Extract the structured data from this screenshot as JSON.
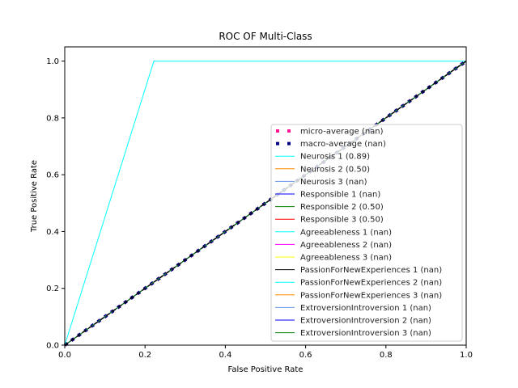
{
  "chart_data": {
    "type": "line",
    "title": "ROC OF Multi-Class",
    "xlabel": "False Positive Rate",
    "ylabel": "True Positive Rate",
    "xlim": [
      0,
      1
    ],
    "ylim": [
      0,
      1.05
    ],
    "x_ticks": [
      "0.0",
      "0.2",
      "0.4",
      "0.6",
      "0.8",
      "1.0"
    ],
    "y_ticks": [
      "0.0",
      "0.2",
      "0.4",
      "0.6",
      "0.8",
      "1.0"
    ],
    "grid": false,
    "legend_position": "lower-right",
    "series": [
      {
        "name": "micro-average (nan)",
        "color": "#ff1493",
        "style": "dotted-thick",
        "x": [
          0,
          1
        ],
        "y": [
          0,
          1
        ]
      },
      {
        "name": "macro-average (nan)",
        "color": "#000080",
        "style": "dotted-thick",
        "x": [
          0,
          1
        ],
        "y": [
          0,
          1
        ]
      },
      {
        "name": "Neurosis 1 (0.89)",
        "color": "#00ffff",
        "style": "solid",
        "x": [
          0,
          0.222,
          1
        ],
        "y": [
          0,
          1,
          1
        ]
      },
      {
        "name": "Neurosis 2 (0.50)",
        "color": "#ff8c00",
        "style": "solid",
        "x": [
          0,
          1
        ],
        "y": [
          0,
          1
        ]
      },
      {
        "name": "Neurosis 3 (nan)",
        "color": "#6495ed",
        "style": "solid",
        "x": [
          0,
          1
        ],
        "y": [
          0,
          1
        ]
      },
      {
        "name": "Responsible 1 (nan)",
        "color": "#0000ff",
        "style": "solid",
        "x": [
          0,
          1
        ],
        "y": [
          0,
          1
        ]
      },
      {
        "name": "Responsible 2 (0.50)",
        "color": "#008000",
        "style": "solid",
        "x": [
          0,
          1
        ],
        "y": [
          0,
          1
        ]
      },
      {
        "name": "Responsible 3 (0.50)",
        "color": "#ff0000",
        "style": "solid",
        "x": [
          0,
          1
        ],
        "y": [
          0,
          1
        ]
      },
      {
        "name": "Agreeableness 1 (nan)",
        "color": "#00ffff",
        "style": "solid",
        "x": [
          0,
          1
        ],
        "y": [
          0,
          1
        ]
      },
      {
        "name": "Agreeableness 2 (nan)",
        "color": "#ff00ff",
        "style": "solid",
        "x": [
          0,
          1
        ],
        "y": [
          0,
          1
        ]
      },
      {
        "name": "Agreeableness 3 (nan)",
        "color": "#ffff00",
        "style": "solid",
        "x": [
          0,
          1
        ],
        "y": [
          0,
          1
        ]
      },
      {
        "name": "PassionForNewExperiences 1 (nan)",
        "color": "#000000",
        "style": "solid",
        "x": [
          0,
          1
        ],
        "y": [
          0,
          1
        ]
      },
      {
        "name": "PassionForNewExperiences 2 (nan)",
        "color": "#00ffff",
        "style": "solid",
        "x": [
          0,
          1
        ],
        "y": [
          0,
          1
        ]
      },
      {
        "name": "PassionForNewExperiences 3 (nan)",
        "color": "#ff8c00",
        "style": "solid",
        "x": [
          0,
          1
        ],
        "y": [
          0,
          1
        ]
      },
      {
        "name": "ExtroversionIntroversion 1 (nan)",
        "color": "#6495ed",
        "style": "solid",
        "x": [
          0,
          1
        ],
        "y": [
          0,
          1
        ]
      },
      {
        "name": "ExtroversionIntroversion 2 (nan)",
        "color": "#0000ff",
        "style": "solid",
        "x": [
          0,
          1
        ],
        "y": [
          0,
          1
        ]
      },
      {
        "name": "ExtroversionIntroversion 3 (nan)",
        "color": "#008000",
        "style": "solid",
        "x": [
          0,
          1
        ],
        "y": [
          0,
          1
        ]
      },
      {
        "name": "",
        "color": "#000000",
        "style": "dashed",
        "x": [
          0,
          1
        ],
        "y": [
          0,
          1
        ]
      }
    ]
  }
}
